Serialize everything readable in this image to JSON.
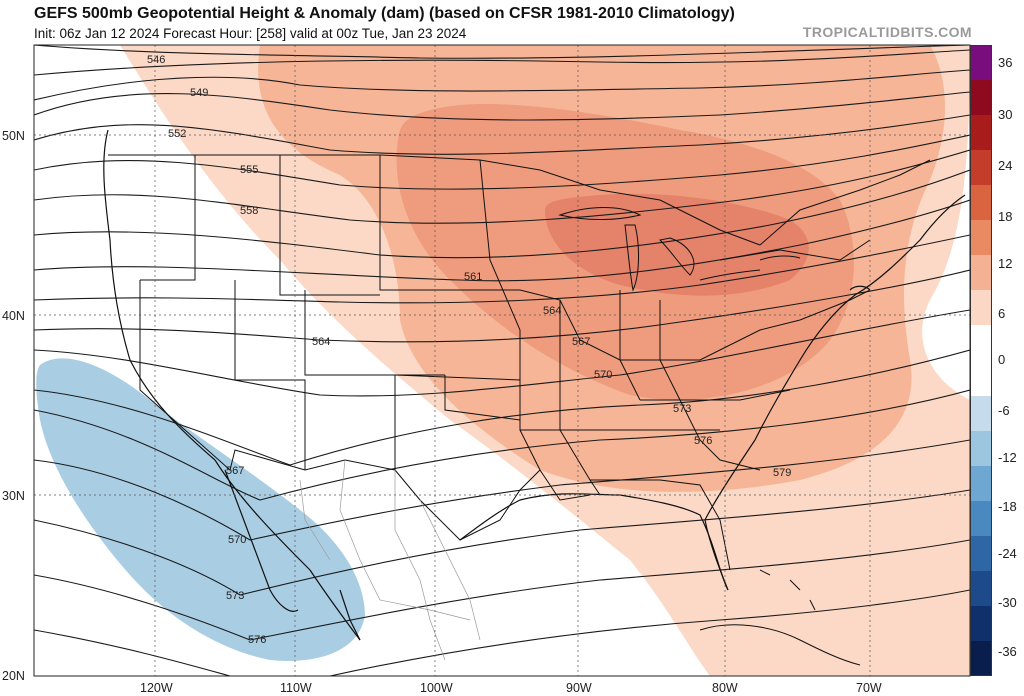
{
  "header": {
    "title": "GEFS 500mb Geopotential Height & Anomaly (dam) (based on CFSR 1981-2010 Climatology)",
    "subtitle": "Init: 06z Jan 12 2024   Forecast Hour: [258]   valid at 00z Tue, Jan 23 2024",
    "brand": "TROPICALTIDBITS.COM"
  },
  "colorbar": {
    "labels": [
      "36",
      "30",
      "24",
      "18",
      "12",
      "6",
      "0",
      "-6",
      "-12",
      "-18",
      "-24",
      "-30",
      "-36"
    ],
    "colors": [
      "#7a0d7e",
      "#8e0a1e",
      "#a81c1c",
      "#c43c2a",
      "#d9643f",
      "#e98a63",
      "#f4b193",
      "#fbd8c6",
      "#ffffff",
      "#ffffff",
      "#c6dcec",
      "#9cc5e0",
      "#6ea7d2",
      "#4a88c0",
      "#2f66a6",
      "#1d4a8a",
      "#10306c",
      "#0a1e4e"
    ]
  },
  "axes": {
    "lat_labels": [
      "50N",
      "40N",
      "30N",
      "20N"
    ],
    "lon_labels": [
      "120W",
      "110W",
      "100W",
      "90W",
      "80W",
      "70W"
    ]
  },
  "contour_labels": [
    "546",
    "549",
    "552",
    "555",
    "558",
    "561",
    "564",
    "564",
    "567",
    "570",
    "573",
    "576",
    "579",
    "567",
    "570",
    "573",
    "576"
  ]
}
